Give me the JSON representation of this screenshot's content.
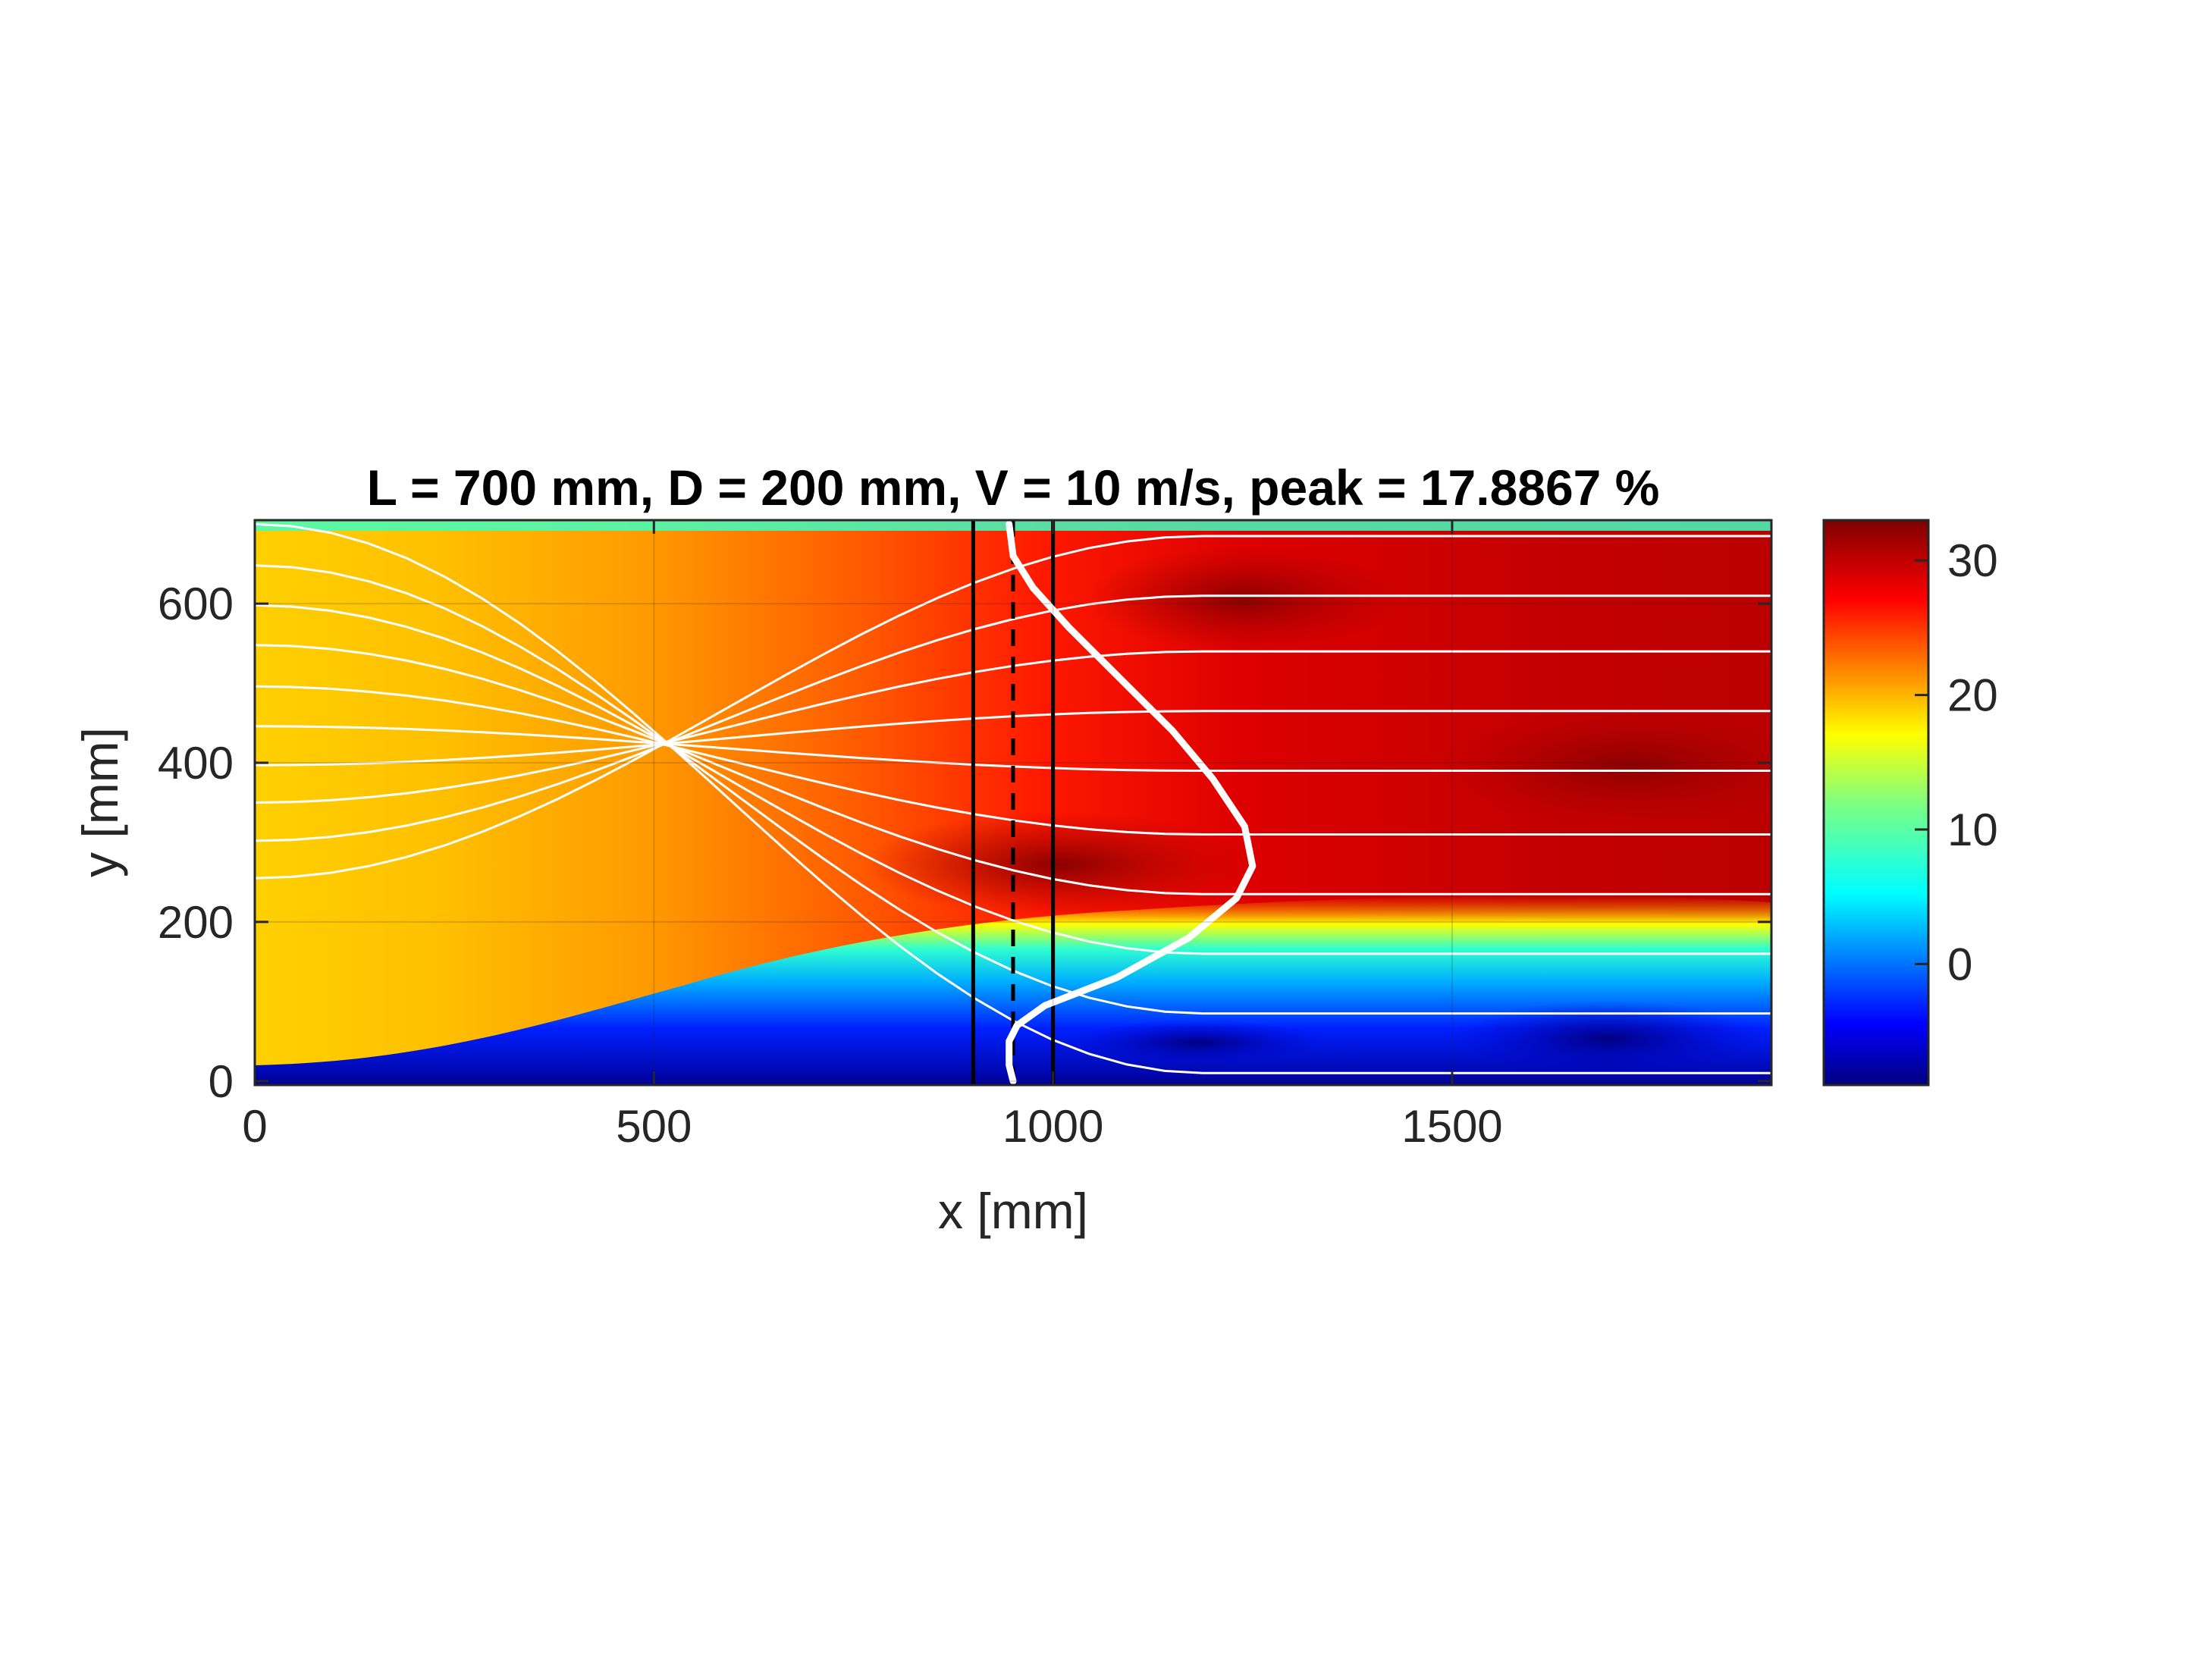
{
  "chart_data": {
    "type": "heatmap",
    "title": "L = 700 mm, D = 200 mm, V = 10 m/s, peak = 17.8867 %",
    "xlabel": "x [mm]",
    "ylabel": "y [mm]",
    "xlim": [
      0,
      1900
    ],
    "ylim": [
      -5,
      705
    ],
    "xticks": [
      0,
      500,
      1000,
      1500
    ],
    "xtick_labels": [
      "0",
      "500",
      "1000",
      "1500"
    ],
    "yticks": [
      0,
      200,
      400,
      600
    ],
    "ytick_labels": [
      "0",
      "200",
      "400",
      "600"
    ],
    "grid": true,
    "colormap": "jet",
    "colorbar": {
      "clim": [
        -9,
        33
      ],
      "ticks": [
        0,
        10,
        20,
        30
      ],
      "tick_labels": [
        "0",
        "10",
        "20",
        "30"
      ]
    },
    "vertical_lines": [
      {
        "x": 900,
        "style": "solid",
        "color": "#000000"
      },
      {
        "x": 950,
        "style": "dashed",
        "color": "#000000"
      },
      {
        "x": 1000,
        "style": "solid",
        "color": "#000000"
      }
    ],
    "profile_curve": {
      "color": "#ffffff",
      "points": [
        [
          950,
          0
        ],
        [
          945,
          20
        ],
        [
          945,
          50
        ],
        [
          955,
          70
        ],
        [
          990,
          95
        ],
        [
          1080,
          130
        ],
        [
          1170,
          180
        ],
        [
          1230,
          230
        ],
        [
          1250,
          270
        ],
        [
          1240,
          320
        ],
        [
          1200,
          380
        ],
        [
          1150,
          440
        ],
        [
          1080,
          510
        ],
        [
          1020,
          570
        ],
        [
          975,
          620
        ],
        [
          950,
          660
        ],
        [
          945,
          700
        ]
      ]
    },
    "streamlines": [
      {
        "y0": 10,
        "y1": 700
      },
      {
        "y0": 85,
        "y1": 648
      },
      {
        "y0": 160,
        "y1": 598
      },
      {
        "y0": 235,
        "y1": 548
      },
      {
        "y0": 310,
        "y1": 496
      },
      {
        "y0": 390,
        "y1": 446
      },
      {
        "y0": 465,
        "y1": 397
      },
      {
        "y0": 540,
        "y1": 350
      },
      {
        "y0": 610,
        "y1": 302
      },
      {
        "y0": 685,
        "y1": 255
      }
    ]
  }
}
